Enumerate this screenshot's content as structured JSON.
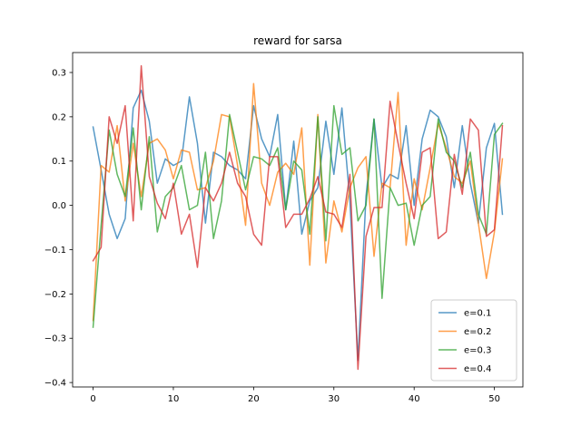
{
  "chart_data": {
    "type": "line",
    "title": "reward for sarsa",
    "xlabel": "",
    "ylabel": "",
    "xlim": [
      -2.55,
      53.55
    ],
    "ylim": [
      -0.41,
      0.345
    ],
    "xticks": [
      0,
      10,
      20,
      30,
      40,
      50
    ],
    "yticks": [
      -0.4,
      -0.3,
      -0.2,
      -0.1,
      0.0,
      0.1,
      0.2,
      0.3
    ],
    "ytick_labels": [
      "−0.4",
      "−0.3",
      "−0.2",
      "−0.1",
      "0.0",
      "0.1",
      "0.2",
      "0.3"
    ],
    "grid": false,
    "legend_position": "lower right",
    "series": [
      {
        "name": "e=0.1",
        "color": "#1f77b4",
        "values": [
          0.177,
          0.08,
          -0.02,
          -0.075,
          -0.03,
          0.22,
          0.26,
          0.19,
          0.05,
          0.105,
          0.09,
          0.1,
          0.245,
          0.14,
          -0.04,
          0.12,
          0.11,
          0.09,
          0.08,
          0.06,
          0.225,
          0.15,
          0.11,
          0.205,
          -0.01,
          0.145,
          -0.065,
          0.01,
          0.04,
          0.19,
          0.07,
          0.22,
          0.01,
          -0.35,
          0.02,
          0.195,
          0.04,
          0.07,
          0.06,
          0.18,
          0.0,
          0.15,
          0.215,
          0.2,
          0.155,
          0.04,
          0.18,
          0.05,
          -0.04,
          0.13,
          0.185,
          -0.02
        ]
      },
      {
        "name": "e=0.2",
        "color": "#ff7f0e",
        "values": [
          -0.26,
          0.09,
          0.075,
          0.18,
          0.01,
          0.14,
          0.02,
          0.14,
          0.15,
          0.125,
          0.06,
          0.125,
          0.12,
          0.035,
          0.04,
          0.1,
          0.205,
          0.2,
          0.09,
          -0.045,
          0.275,
          0.05,
          0.0,
          0.075,
          0.095,
          0.07,
          0.175,
          -0.135,
          0.205,
          -0.13,
          0.01,
          -0.06,
          0.04,
          0.085,
          0.11,
          -0.115,
          0.05,
          0.04,
          0.255,
          -0.09,
          0.06,
          -0.01,
          0.085,
          0.185,
          0.13,
          0.065,
          0.05,
          0.1,
          -0.04,
          -0.165,
          -0.06,
          0.105
        ]
      },
      {
        "name": "e=0.3",
        "color": "#2ca02c",
        "values": [
          -0.275,
          -0.045,
          0.17,
          0.07,
          0.02,
          0.175,
          -0.01,
          0.155,
          -0.06,
          0.02,
          0.04,
          0.09,
          -0.01,
          0.0,
          0.12,
          -0.075,
          0.01,
          0.205,
          0.12,
          0.035,
          0.11,
          0.105,
          0.09,
          0.13,
          -0.01,
          0.1,
          0.08,
          -0.065,
          0.2,
          -0.08,
          0.225,
          0.115,
          0.13,
          -0.035,
          0.0,
          0.195,
          -0.21,
          0.04,
          0.0,
          0.005,
          -0.09,
          0.0,
          0.02,
          0.195,
          0.12,
          0.1,
          0.04,
          0.12,
          -0.02,
          -0.065,
          0.16,
          0.185
        ]
      },
      {
        "name": "e=0.4",
        "color": "#d62728",
        "values": [
          -0.125,
          -0.095,
          0.2,
          0.14,
          0.225,
          -0.035,
          0.315,
          0.065,
          0.005,
          -0.03,
          0.05,
          -0.065,
          -0.02,
          -0.14,
          0.04,
          0.01,
          0.05,
          0.12,
          0.05,
          0.02,
          -0.065,
          -0.09,
          0.11,
          0.11,
          -0.05,
          -0.02,
          -0.02,
          0.015,
          0.065,
          -0.015,
          -0.02,
          -0.05,
          0.07,
          -0.37,
          -0.07,
          -0.005,
          -0.005,
          0.235,
          0.14,
          0.05,
          -0.03,
          0.12,
          0.13,
          -0.075,
          -0.06,
          0.115,
          0.025,
          0.195,
          0.17,
          -0.07,
          -0.055,
          0.18
        ]
      }
    ]
  }
}
